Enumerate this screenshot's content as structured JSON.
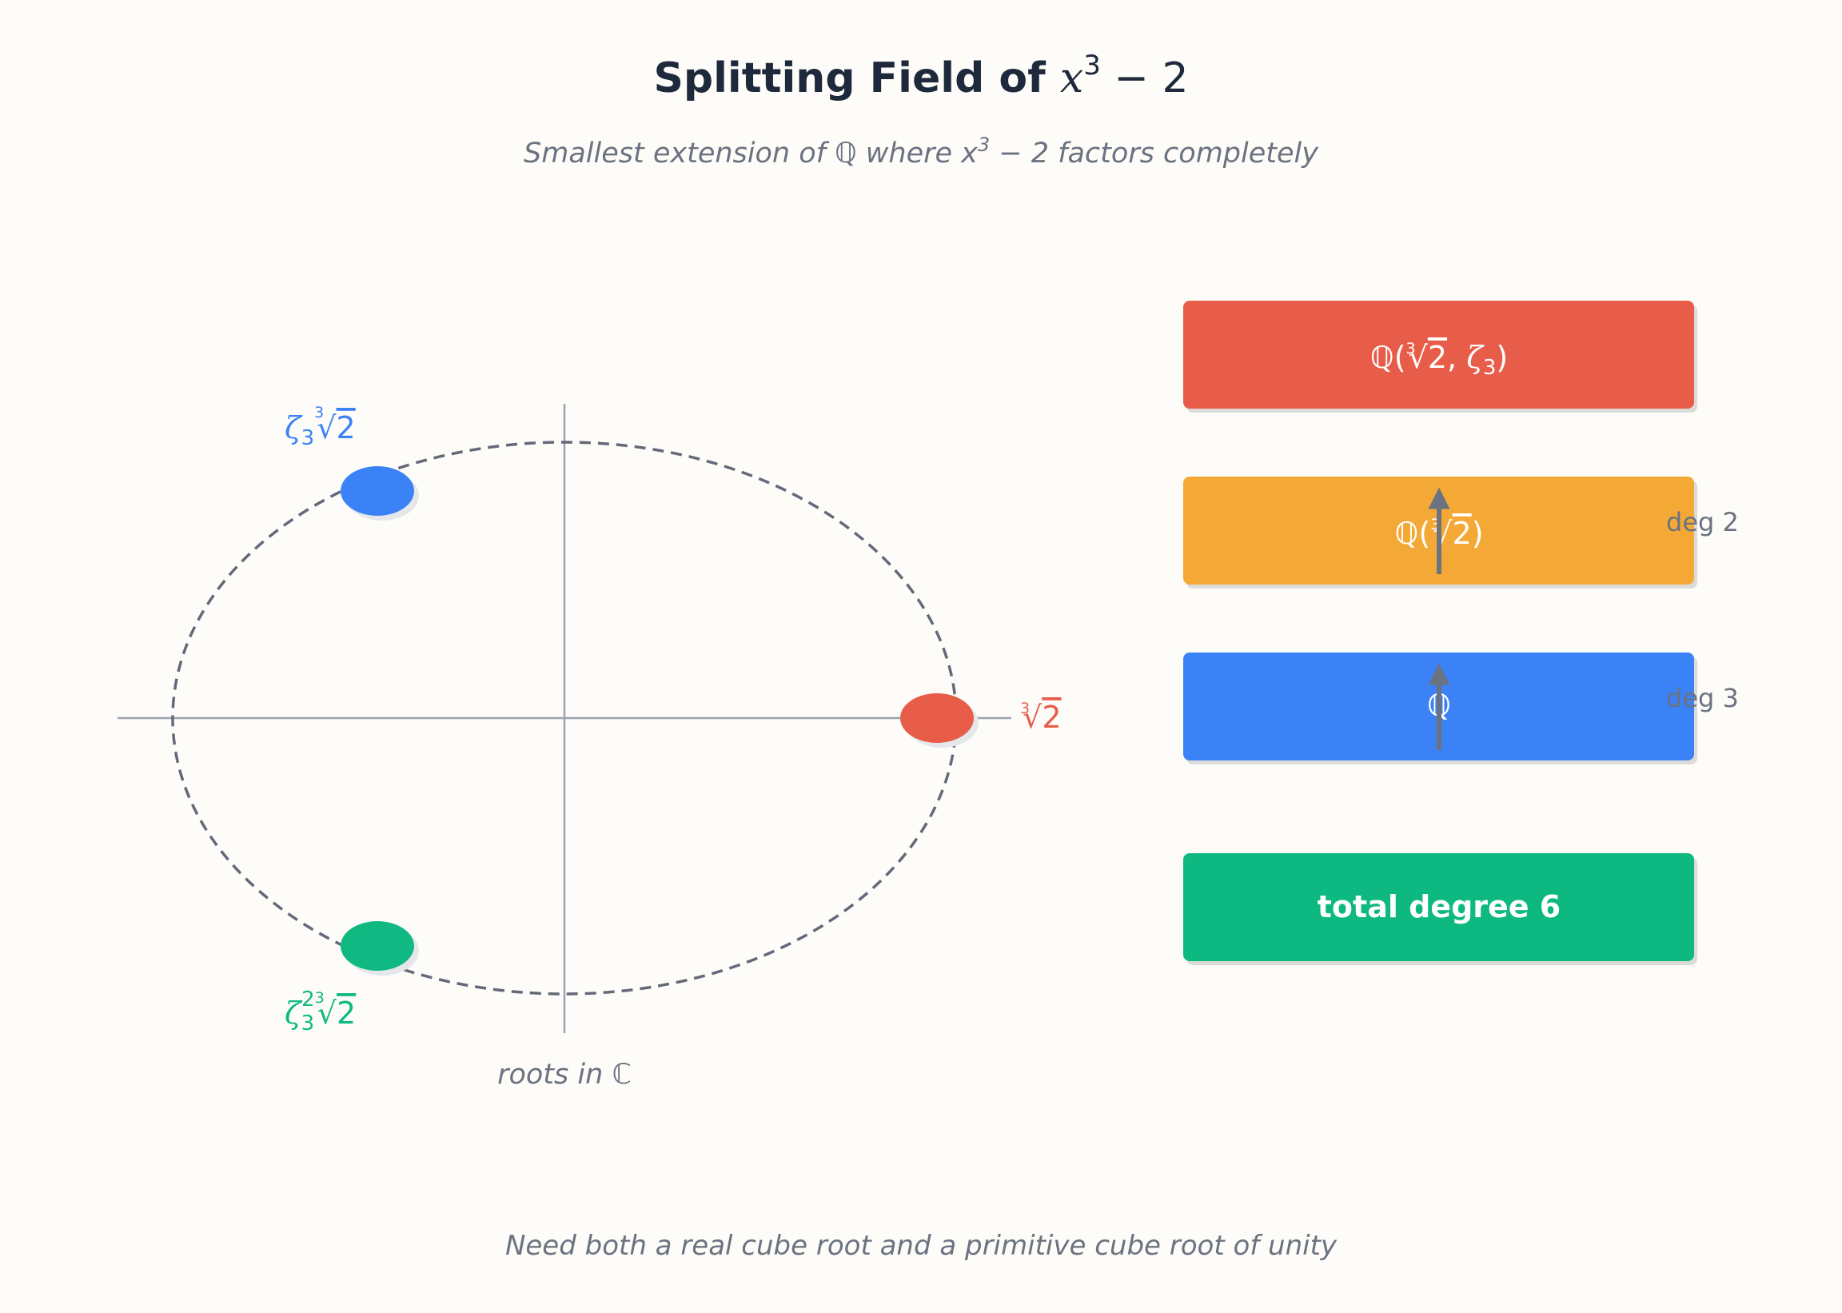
{
  "title": {
    "text": "Splitting Field of ",
    "math": {
      "var": "x",
      "exp": "3",
      "rest": " − 2"
    }
  },
  "subtitle": {
    "pre": "Smallest extension of ",
    "field": "ℚ",
    "mid": " where ",
    "var": "x",
    "exp": "3",
    "rest": " − 2 factors completely"
  },
  "roots": {
    "caption_pre": "roots in ",
    "caption_field": "ℂ",
    "real": {
      "index": "3",
      "radicand": "2",
      "color": "#e85d4a"
    },
    "upper": {
      "zeta": "ζ",
      "sub": "3",
      "index": "3",
      "radicand": "2",
      "color": "#3b82f6"
    },
    "lower": {
      "zeta": "ζ",
      "sub": "3",
      "sup": "2",
      "index": "3",
      "radicand": "2",
      "color": "#10b981"
    }
  },
  "tower": {
    "top": {
      "field": "ℚ",
      "open": "(",
      "index": "3",
      "radicand": "2",
      "sep": ", ",
      "zeta": "ζ",
      "sub": "3",
      "close": ")",
      "color": "#e85d4a"
    },
    "middle": {
      "field": "ℚ",
      "open": "(",
      "index": "3",
      "radicand": "2",
      "close": ")",
      "color": "#f4a836"
    },
    "bottom": {
      "field": "ℚ",
      "color": "#3b82f6"
    },
    "deg_upper": "deg 2",
    "deg_lower": "deg 3",
    "total": {
      "label": "total degree 6",
      "color": "#10b981"
    }
  },
  "footer": "Need both a real cube root and a primitive cube root of unity",
  "colors": {
    "text": "#1e293b",
    "muted": "#6b7280",
    "axis": "#9ca3af",
    "circle": "#64697a"
  }
}
